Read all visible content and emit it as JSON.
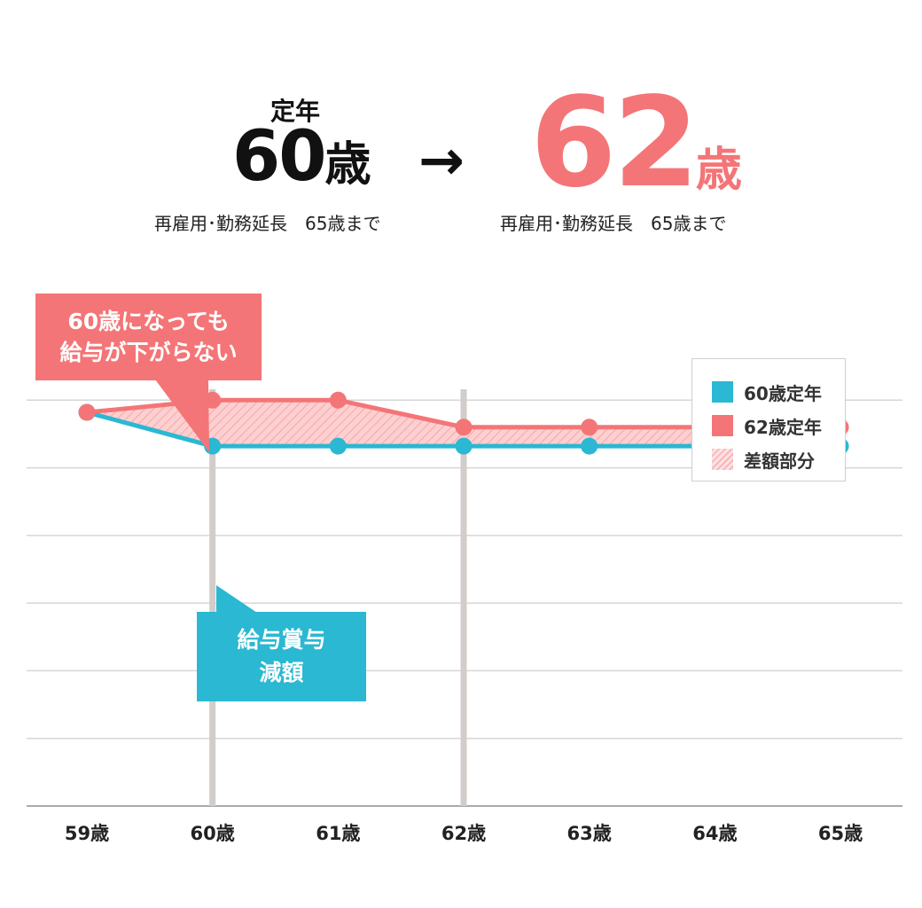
{
  "header": {
    "left_label": "定年",
    "left_age": "60",
    "left_unit": "歳",
    "arrow": "→",
    "right_age": "62",
    "right_unit": "歳",
    "left_sub": "再雇用･勤務延長　65歳まで",
    "right_sub": "再雇用･勤務延長　65歳まで"
  },
  "callouts": {
    "red_line1": "60歳になっても",
    "red_line2": "給与が下がらない",
    "blue_line1": "給与賞与",
    "blue_line2": "減額"
  },
  "legend": {
    "items": [
      {
        "label": "60歳定年",
        "color": "#2ab8d2"
      },
      {
        "label": "62歳定年",
        "color": "#f47577"
      },
      {
        "label": "差額部分",
        "color": "#f9b7b8"
      }
    ]
  },
  "colors": {
    "blue": "#2ab8d2",
    "red": "#f47577",
    "fill": "#fcd0d1",
    "grid": "#d6d6d6",
    "vline": "#d2cdca"
  },
  "chart_data": {
    "type": "line",
    "categories": [
      "59歳",
      "60歳",
      "61歳",
      "62歳",
      "63歳",
      "64歳",
      "65歳"
    ],
    "series": [
      {
        "name": "60歳定年",
        "values": [
          5.82,
          5.32,
          5.32,
          5.32,
          5.32,
          5.32,
          5.32
        ]
      },
      {
        "name": "62歳定年",
        "values": [
          5.82,
          6.0,
          6.0,
          5.6,
          5.6,
          5.6,
          5.6
        ]
      }
    ],
    "ylim": [
      0,
      7
    ],
    "grid": true,
    "highlight_categories": [
      "60歳",
      "62歳"
    ],
    "legend_position": "top-right"
  }
}
